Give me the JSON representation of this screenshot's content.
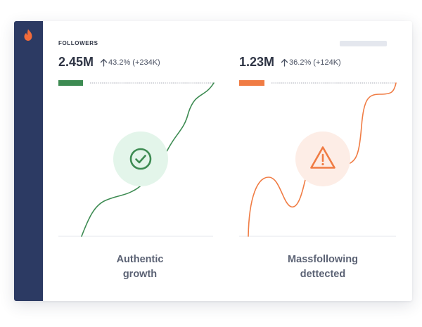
{
  "header": {
    "label": "FOLLOWERS"
  },
  "colors": {
    "sidebar": "#2c3a63",
    "brand": "#f26b3a",
    "authentic": "#3d8b52",
    "authentic_bg": "#e3f5ea",
    "suspicious": "#f07c44",
    "suspicious_bg": "#fdede6"
  },
  "icons": {
    "logo": "flame-icon",
    "authentic_badge": "checkmark-circle-icon",
    "suspicious_badge": "warning-triangle-icon",
    "trend": "arrow-up-icon"
  },
  "panels": [
    {
      "value": "2.45M",
      "change": "43.2% (+234K)",
      "caption_line1": "Authentic",
      "caption_line2": "growth"
    },
    {
      "value": "1.23M",
      "change": "36.2% (+124K)",
      "caption_line1": "Massfollowing",
      "caption_line2": "dettected"
    }
  ]
}
